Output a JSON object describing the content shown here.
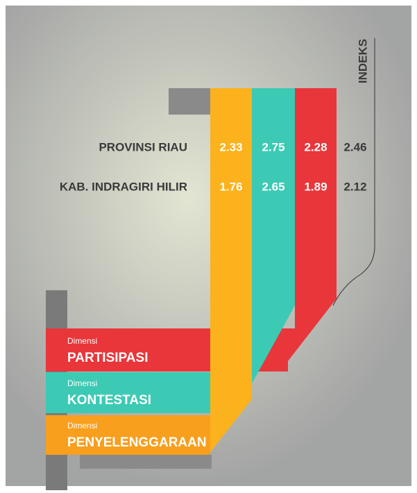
{
  "header": {
    "index_label": "INDEKS"
  },
  "table": {
    "rows": [
      {
        "label": "PROVINSI RIAU",
        "values": [
          2.33,
          2.75,
          2.28,
          2.46
        ]
      },
      {
        "label": "KAB. INDRAGIRI HILIR",
        "values": [
          1.76,
          2.65,
          1.89,
          2.12
        ]
      }
    ]
  },
  "dimensions": [
    {
      "prefix": "Dimensi",
      "name": "PARTISIPASI"
    },
    {
      "prefix": "Dimensi",
      "name": "KONTESTASI"
    },
    {
      "prefix": "Dimensi",
      "name": "PENYELENGGARAAN"
    }
  ]
}
